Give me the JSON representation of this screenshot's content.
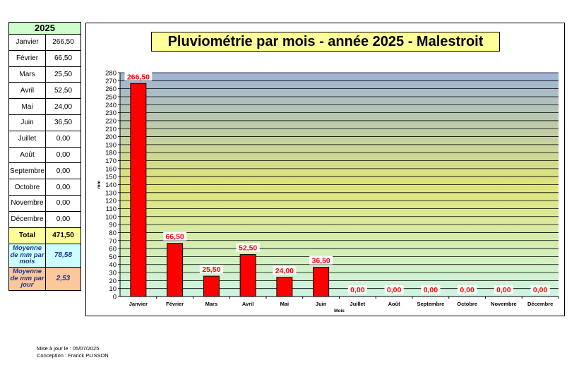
{
  "table": {
    "year": "2025",
    "months": [
      {
        "name": "Janvier",
        "value": "266,50"
      },
      {
        "name": "Février",
        "value": "66,50"
      },
      {
        "name": "Mars",
        "value": "25,50"
      },
      {
        "name": "Avril",
        "value": "52,50"
      },
      {
        "name": "Mai",
        "value": "24,00"
      },
      {
        "name": "Juin",
        "value": "36,50"
      },
      {
        "name": "Juillet",
        "value": "0,00"
      },
      {
        "name": "Août",
        "value": "0,00"
      },
      {
        "name": "Septembre",
        "value": "0,00"
      },
      {
        "name": "Octobre",
        "value": "0,00"
      },
      {
        "name": "Novembre",
        "value": "0,00"
      },
      {
        "name": "Décembre",
        "value": "0,00"
      }
    ],
    "total_label": "Total",
    "total_value": "471,50",
    "avg_month_label": "Moyenne de mm par mois",
    "avg_month_value": "78,58",
    "avg_day_label": "Moyenne de mm par jour",
    "avg_day_value": "2,53"
  },
  "chart_data": {
    "type": "bar",
    "title": "Pluviométrie par mois - année 2025 - Malestroit",
    "xlabel": "Mois",
    "ylabel": "mm",
    "categories": [
      "Janvier",
      "Février",
      "Mars",
      "Avril",
      "Mai",
      "Juin",
      "Juillet",
      "Août",
      "Septembre",
      "Octobre",
      "Novembre",
      "Décembre"
    ],
    "values": [
      266.5,
      66.5,
      25.5,
      52.5,
      24.0,
      36.5,
      0,
      0,
      0,
      0,
      0,
      0
    ],
    "data_labels": [
      "266,50",
      "66,50",
      "25,50",
      "52,50",
      "24,00",
      "36,50",
      "0,00",
      "0,00",
      "0,00",
      "0,00",
      "0,00",
      "0,00"
    ],
    "ylim": [
      0,
      280
    ],
    "ytick_step": 10,
    "grid": true,
    "bar_color": "#ff0000",
    "label_color": "#ff0000",
    "background_gradient": [
      "#9fb4d6",
      "#dfe47a",
      "#cdf5e3"
    ]
  },
  "footer": {
    "updated": "Mise à jour le : 05/07/2025",
    "author": "Conception : Franck PLISSON"
  }
}
